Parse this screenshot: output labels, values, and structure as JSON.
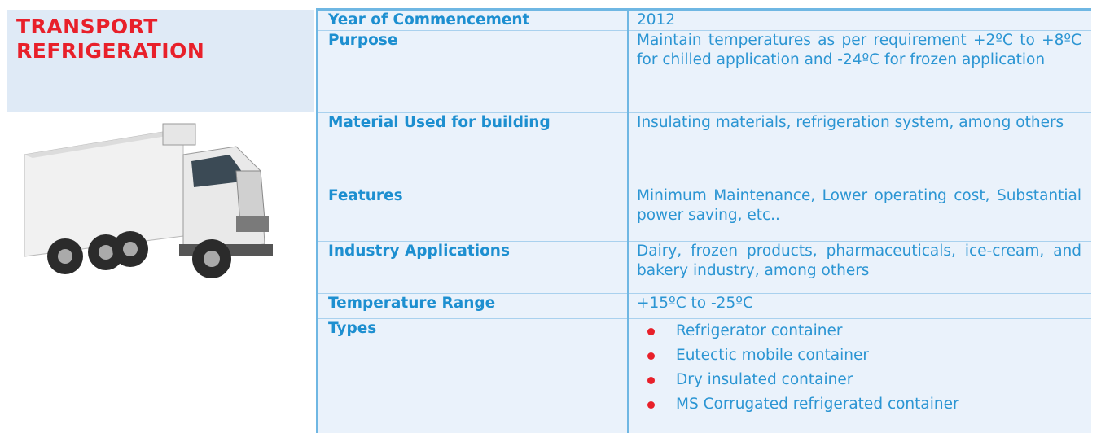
{
  "header": {
    "title": "TRANSPORT REFRIGERATION"
  },
  "table": {
    "rows": [
      {
        "label": "Year of Commencement",
        "value": "2012"
      },
      {
        "label": "Purpose",
        "value": "Maintain temperatures as per requirement +2ºC to +8ºC for chilled application and -24ºC for frozen application"
      },
      {
        "label": "Material Used for building",
        "value": "Insulating materials, refrigeration system, among others"
      },
      {
        "label": "Features",
        "value": "Minimum Maintenance, Lower operating cost, Substantial power saving, etc.."
      },
      {
        "label": "Industry Applications",
        "value": "Dairy, frozen products, pharmaceuticals, ice-cream, and bakery industry, among others"
      },
      {
        "label": "Temperature Range",
        "value": "+15ºC to -25ºC"
      },
      {
        "label": "Types",
        "items": [
          "Refrigerator container",
          "Eutectic mobile container",
          "Dry insulated container",
          "MS Corrugated refrigerated container"
        ]
      }
    ]
  }
}
